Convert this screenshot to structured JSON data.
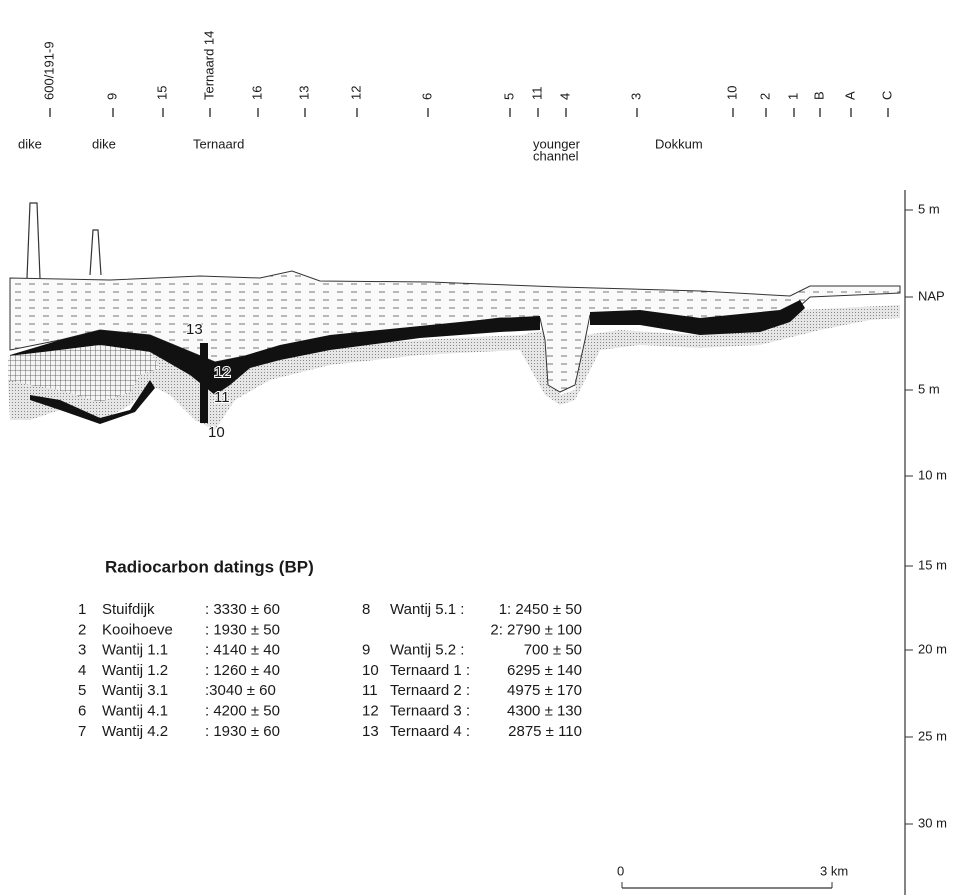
{
  "top_labels": [
    "600/191-9",
    "9",
    "15",
    "Ternaard 14",
    "16",
    "13",
    "12",
    "6",
    "5",
    "11",
    "4",
    "3",
    "10",
    "2",
    "1",
    "B",
    "A",
    "C"
  ],
  "place_labels": [
    {
      "lines": [
        "dike"
      ]
    },
    {
      "lines": [
        "dike"
      ]
    },
    {
      "lines": [
        "Ternaard"
      ]
    },
    {
      "lines": [
        "younger",
        "channel"
      ]
    },
    {
      "lines": [
        "Dokkum"
      ]
    }
  ],
  "depth_labels": [
    "5 m",
    "NAP",
    "5 m",
    "10 m",
    "15 m",
    "20 m",
    "25 m",
    "30 m"
  ],
  "sample_labels": [
    "13",
    "12",
    "11",
    "10"
  ],
  "legend": {
    "title": "Radiocarbon datings (BP)",
    "left": [
      {
        "no": "1",
        "name": "Stuifdijk",
        "date": ": 3330 ± 60"
      },
      {
        "no": "2",
        "name": "Kooihoeve",
        "date": ": 1930 ± 50"
      },
      {
        "no": "3",
        "name": "Wantij 1.1",
        "date": ": 4140 ± 40"
      },
      {
        "no": "4",
        "name": "Wantij 1.2",
        "date": ": 1260 ± 40"
      },
      {
        "no": "5",
        "name": "Wantij 3.1",
        "date": ":3040 ± 60"
      },
      {
        "no": "6",
        "name": "Wantij 4.1",
        "date": ": 4200 ± 50"
      },
      {
        "no": "7",
        "name": "Wantij 4.2",
        "date": ": 1930 ± 60"
      }
    ],
    "right": [
      {
        "no": "8",
        "name": "Wantij 5.1 :",
        "date": "1: 2450 ±  50"
      },
      {
        "date": "2: 2790 ± 100"
      },
      {
        "no": "9",
        "name": "Wantij 5.2   :",
        "date": "700 ± 50"
      },
      {
        "no": "10",
        "name": "Ternaard 1 :",
        "date": "6295 ± 140"
      },
      {
        "no": "11",
        "name": "Ternaard 2 :",
        "date": "4975 ± 170"
      },
      {
        "no": "12",
        "name": "Ternaard 3 :",
        "date": "4300 ± 130"
      },
      {
        "no": "13",
        "name": "Ternaard 4 :",
        "date": "2875 ± 110"
      }
    ]
  },
  "scale_bar": {
    "start": "0",
    "end": "3 km"
  }
}
